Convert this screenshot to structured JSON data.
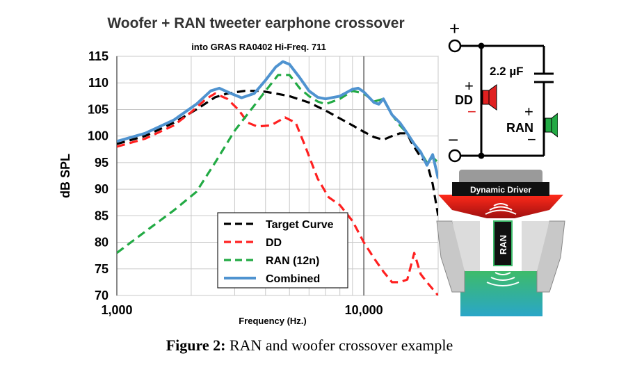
{
  "chart_data": {
    "type": "line",
    "title": "Woofer + RAN tweeter earphone crossover",
    "subtitle": "into GRAS RA0402 Hi-Freq. 711",
    "xlabel": "Frequency (Hz.)",
    "ylabel": "dB SPL",
    "xscale": "log",
    "xlim": [
      1000,
      20000
    ],
    "ylim": [
      70,
      115
    ],
    "x_ticks": [
      1000,
      10000
    ],
    "x_tick_labels": [
      "1,000",
      "10,000"
    ],
    "y_ticks": [
      70,
      75,
      80,
      85,
      90,
      95,
      100,
      105,
      110,
      115
    ],
    "y_tick_labels": [
      "70",
      "75",
      "80",
      "85",
      "90",
      "95",
      "100",
      "105",
      "110",
      "115"
    ],
    "grid": true,
    "legend_position": "bottom-center",
    "series": [
      {
        "name": "Target Curve",
        "color": "#000000",
        "style": "dashed",
        "points": [
          [
            1000,
            98.5
          ],
          [
            1300,
            100
          ],
          [
            1700,
            102.5
          ],
          [
            2100,
            105
          ],
          [
            2500,
            107.3
          ],
          [
            2800,
            108
          ],
          [
            3300,
            108.5
          ],
          [
            3800,
            108.5
          ],
          [
            4400,
            108
          ],
          [
            5000,
            107.5
          ],
          [
            6000,
            106.3
          ],
          [
            7000,
            104.8
          ],
          [
            8000,
            103.3
          ],
          [
            9000,
            102
          ],
          [
            10000,
            100.8
          ],
          [
            11000,
            99.8
          ],
          [
            12000,
            99.3
          ],
          [
            13000,
            100
          ],
          [
            14000,
            100.5
          ],
          [
            15000,
            100.5
          ],
          [
            15500,
            99
          ],
          [
            17000,
            96
          ],
          [
            18000,
            95
          ],
          [
            19000,
            91
          ],
          [
            20000,
            85
          ]
        ]
      },
      {
        "name": "DD",
        "color": "#ff2020",
        "style": "dashed",
        "points": [
          [
            1000,
            98
          ],
          [
            1300,
            99.5
          ],
          [
            1700,
            102
          ],
          [
            2000,
            104.5
          ],
          [
            2300,
            107
          ],
          [
            2500,
            108
          ],
          [
            2800,
            107
          ],
          [
            3100,
            105
          ],
          [
            3400,
            102.5
          ],
          [
            3700,
            101.8
          ],
          [
            4200,
            102
          ],
          [
            4800,
            103.5
          ],
          [
            5300,
            102.5
          ],
          [
            5800,
            98
          ],
          [
            6500,
            92
          ],
          [
            7200,
            88.5
          ],
          [
            8000,
            87
          ],
          [
            9000,
            84
          ],
          [
            10000,
            80
          ],
          [
            11000,
            77
          ],
          [
            12000,
            74.5
          ],
          [
            13000,
            72.5
          ],
          [
            14000,
            72.5
          ],
          [
            15000,
            73
          ],
          [
            16000,
            78
          ],
          [
            17000,
            74
          ],
          [
            18000,
            72.5
          ],
          [
            20000,
            70
          ]
        ]
      },
      {
        "name": "RAN (12n)",
        "color": "#22aa44",
        "style": "dashed",
        "points": [
          [
            1000,
            78
          ],
          [
            1300,
            82
          ],
          [
            1700,
            86
          ],
          [
            2100,
            89.5
          ],
          [
            2500,
            95
          ],
          [
            3000,
            101
          ],
          [
            3500,
            105
          ],
          [
            4000,
            108.5
          ],
          [
            4500,
            111.5
          ],
          [
            5000,
            111.5
          ],
          [
            5500,
            109
          ],
          [
            6000,
            107.5
          ],
          [
            6500,
            106.5
          ],
          [
            7000,
            106
          ],
          [
            8000,
            107
          ],
          [
            9000,
            108.5
          ],
          [
            10000,
            108
          ],
          [
            11000,
            106.5
          ],
          [
            12000,
            107
          ],
          [
            13000,
            104
          ],
          [
            14000,
            102
          ],
          [
            15000,
            100.5
          ],
          [
            16000,
            98.5
          ],
          [
            17000,
            97
          ],
          [
            18000,
            95
          ],
          [
            19000,
            96
          ],
          [
            20000,
            95
          ]
        ]
      },
      {
        "name": "Combined",
        "color": "#4f93d0",
        "style": "solid",
        "points": [
          [
            1000,
            99
          ],
          [
            1300,
            100.5
          ],
          [
            1700,
            103
          ],
          [
            2100,
            106
          ],
          [
            2400,
            108.5
          ],
          [
            2600,
            109
          ],
          [
            2900,
            108
          ],
          [
            3200,
            107.2
          ],
          [
            3600,
            108
          ],
          [
            4000,
            110.5
          ],
          [
            4400,
            113
          ],
          [
            4700,
            114
          ],
          [
            5000,
            113.5
          ],
          [
            5500,
            111
          ],
          [
            6000,
            108.5
          ],
          [
            6500,
            107.3
          ],
          [
            7000,
            107
          ],
          [
            8000,
            107.5
          ],
          [
            9000,
            108.8
          ],
          [
            9500,
            109
          ],
          [
            10000,
            108.3
          ],
          [
            11000,
            106.3
          ],
          [
            11500,
            106
          ],
          [
            12000,
            107
          ],
          [
            13000,
            104
          ],
          [
            14000,
            102.5
          ],
          [
            15000,
            100.5
          ],
          [
            16000,
            98.5
          ],
          [
            17000,
            97
          ],
          [
            18000,
            94.5
          ],
          [
            19000,
            96.5
          ],
          [
            20000,
            92
          ]
        ]
      }
    ]
  },
  "schematic": {
    "capacitor_label": "2.2 µF",
    "dd_label": "DD",
    "ran_label": "RAN",
    "plus": "+",
    "minus": "−"
  },
  "driver_diagram": {
    "dynamic_driver_label": "Dynamic Driver",
    "ran_label": "RAN"
  },
  "caption": {
    "bold": "Figure 2:",
    "text": " RAN and woofer crossover example"
  }
}
